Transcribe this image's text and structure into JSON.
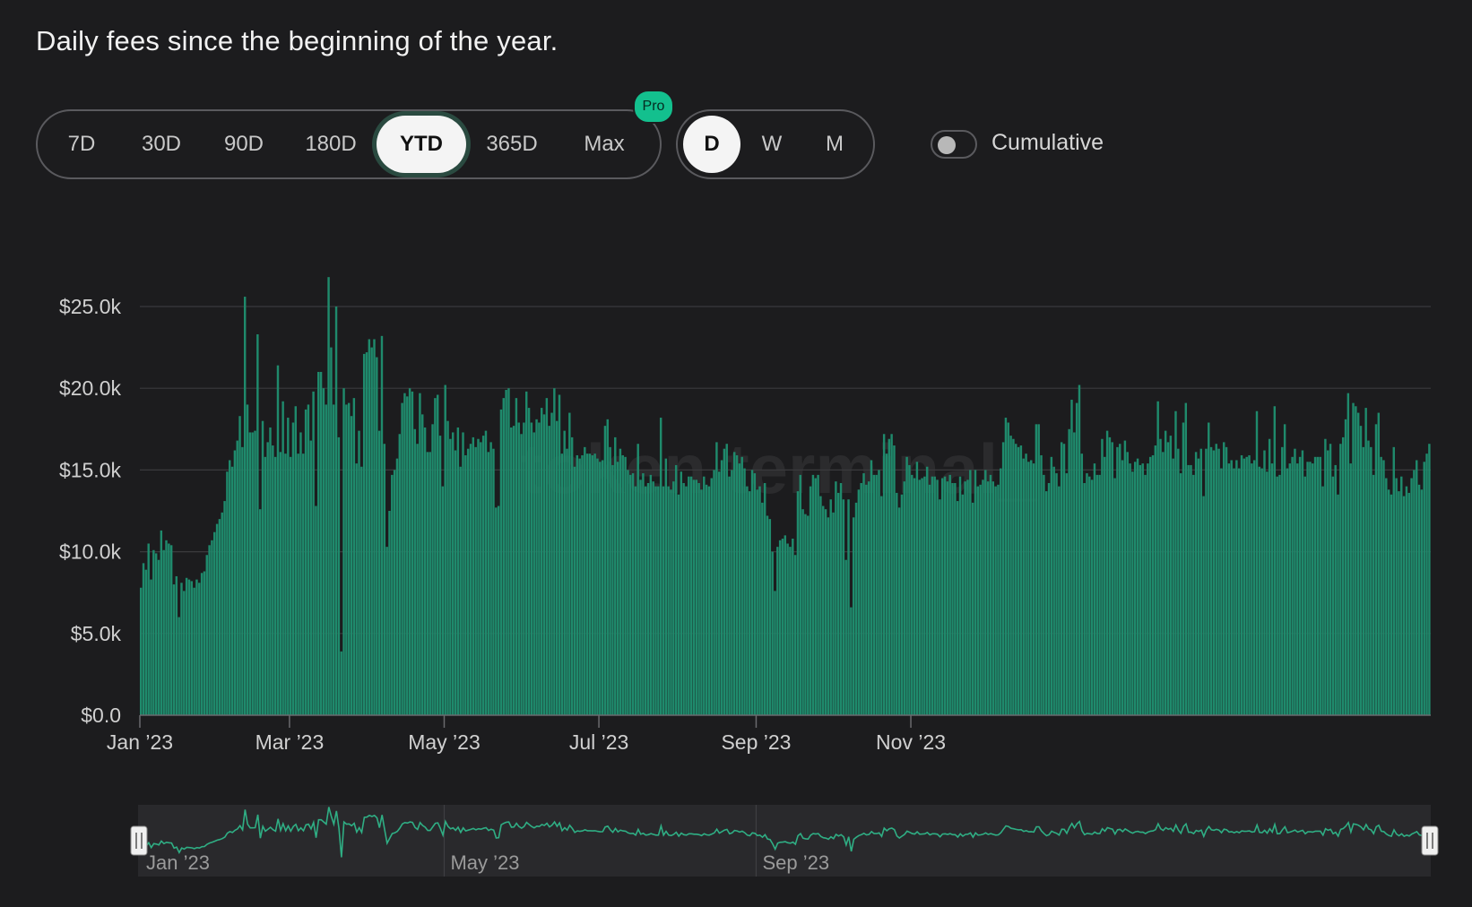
{
  "title": "Daily fees since the beginning of the year.",
  "range_tabs": [
    {
      "label": "7D",
      "name": "range-tab-7d",
      "active": false
    },
    {
      "label": "30D",
      "name": "range-tab-30d",
      "active": false
    },
    {
      "label": "90D",
      "name": "range-tab-90d",
      "active": false
    },
    {
      "label": "180D",
      "name": "range-tab-180d",
      "active": false
    },
    {
      "label": "YTD",
      "name": "range-tab-ytd",
      "active": true
    },
    {
      "label": "365D",
      "name": "range-tab-365d",
      "active": false
    },
    {
      "label": "Max",
      "name": "range-tab-max",
      "active": false
    }
  ],
  "pro_badge": "Pro",
  "granularity_tabs": [
    {
      "label": "D",
      "name": "granularity-tab-day",
      "active": true
    },
    {
      "label": "W",
      "name": "granularity-tab-week",
      "active": false
    },
    {
      "label": "M",
      "name": "granularity-tab-month",
      "active": false
    }
  ],
  "cumulative": {
    "label": "Cumulative",
    "on": false
  },
  "watermark": "token terminal_",
  "colors": {
    "bar": "#1f8a6c",
    "line": "#2fae84",
    "accent": "#13c08e",
    "background": "#1c1c1e"
  },
  "chart_data": {
    "type": "bar",
    "title": "Daily fees since the beginning of the year.",
    "xlabel": "",
    "ylabel": "",
    "ylim": [
      0,
      25000
    ],
    "yticks": [
      "$0.0",
      "$5.0k",
      "$10.0k",
      "$15.0k",
      "$20.0k",
      "$25.0k"
    ],
    "ytick_values": [
      0,
      5000,
      10000,
      15000,
      20000,
      25000
    ],
    "xticks": [
      "Jan ’23",
      "Mar ’23",
      "May ’23",
      "Jul ’23",
      "Sep ’23",
      "Nov ’23"
    ],
    "xtick_days": [
      0,
      59,
      120,
      181,
      243,
      304
    ],
    "grid": true,
    "navigator_labels": [
      "Jan ’23",
      "May ’23",
      "Sep ’23"
    ],
    "navigator_label_days": [
      0,
      120,
      243
    ],
    "x_start": "2023-01-01",
    "series": [
      {
        "values": [
          7800,
          9300,
          8900,
          10500,
          8300,
          10100,
          9900,
          9500,
          11300,
          10100,
          10700,
          10500,
          10400,
          8000,
          8500,
          6000,
          8100,
          7600,
          8400,
          8300,
          8200,
          7800,
          8300,
          8100,
          8700,
          8800,
          9800,
          10400,
          10700,
          11200,
          11700,
          12000,
          12400,
          13100,
          14900,
          15600,
          15200,
          16200,
          16800,
          18300,
          16400,
          25600,
          19000,
          17300,
          17300,
          17400,
          23300,
          12600,
          18000,
          15800,
          16700,
          17600,
          16500,
          15800,
          21400,
          16100,
          19200,
          16000,
          18200,
          15800,
          17900,
          18900,
          16000,
          17300,
          16000,
          18700,
          19000,
          16800,
          19800,
          12800,
          21000,
          21000,
          20000,
          19000,
          26800,
          22500,
          19000,
          25000,
          17000,
          3900,
          20000,
          19000,
          19100,
          18300,
          19400,
          15400,
          17400,
          15200,
          22100,
          22200,
          23000,
          22500,
          23000,
          21900,
          17400,
          23200,
          16600,
          10300,
          12500,
          14700,
          15000,
          15700,
          17200,
          19100,
          19700,
          19500,
          20000,
          19800,
          17500,
          16600,
          19700,
          18400,
          17600,
          16100,
          16100,
          17800,
          19400,
          19600,
          17100,
          14000,
          20200,
          18000,
          16900,
          17300,
          16200,
          17600,
          15200,
          17300,
          15900,
          16300,
          16600,
          17000,
          16400,
          16900,
          16700,
          17100,
          17400,
          16100,
          16700,
          16300,
          12700,
          12800,
          18700,
          19400,
          19900,
          20000,
          17600,
          17700,
          19400,
          17900,
          17200,
          17900,
          19800,
          18800,
          17900,
          17300,
          18100,
          17900,
          18800,
          18400,
          19400,
          17700,
          18500,
          20000,
          18000,
          19600,
          16000,
          17400,
          16300,
          18500,
          17000,
          15200,
          15900,
          15700,
          15900,
          16400,
          16000,
          16000,
          15900,
          16000,
          15700,
          15500,
          15600,
          17700,
          18100,
          16400,
          15300,
          17000,
          15500,
          16300,
          15900,
          15800,
          15000,
          14700,
          14800,
          14000,
          16600,
          14400,
          14800,
          14000,
          14200,
          14700,
          14300,
          14000,
          14000,
          18200,
          14000,
          15700,
          14000,
          13800,
          14300,
          15300,
          13500,
          14900,
          14200,
          14000,
          14600,
          14600,
          14400,
          14400,
          14200,
          13800,
          14600,
          14100,
          14000,
          14500,
          15000,
          16700,
          14900,
          15600,
          16300,
          16600,
          14600,
          15000,
          16100,
          15900,
          15400,
          15800,
          15100,
          14000,
          13700,
          15000,
          14800,
          13800,
          14000,
          13000,
          14200,
          12200,
          12000,
          10000,
          7600,
          10300,
          10700,
          10800,
          11000,
          10500,
          10300,
          10800,
          9800,
          13700,
          14700,
          12600,
          12300,
          12200,
          14000,
          14700,
          14500,
          14700,
          13400,
          12800,
          12600,
          12100,
          13200,
          12400,
          14300,
          13600,
          14200,
          13200,
          9500,
          13200,
          6600,
          12100,
          13000,
          13800,
          14200,
          14800,
          14100,
          14300,
          15600,
          14700,
          14700,
          15000,
          13400,
          17200,
          16000,
          16900,
          17200,
          16500,
          13600,
          12700,
          13500,
          14300,
          15800,
          15300,
          14700,
          14500,
          15500,
          14400,
          14500,
          14600,
          15200,
          14100,
          14600,
          14600,
          14400,
          13200,
          14500,
          14600,
          14300,
          14700,
          14200,
          14200,
          13100,
          14600,
          13500,
          14300,
          14400,
          15000,
          13000,
          15000,
          14000,
          14100,
          14400,
          15000,
          14300,
          14700,
          14300,
          14000,
          14100,
          15100,
          16700,
          18200,
          17900,
          17100,
          16900,
          16600,
          16400,
          16500,
          15700,
          16000,
          15500,
          15600,
          15400,
          17800,
          17800,
          15900,
          14700,
          13700,
          14200,
          15800,
          15200,
          14800,
          14000,
          16700,
          16600,
          14800,
          17500,
          19300,
          17300,
          19100,
          20200,
          16000,
          14200,
          14800,
          14600,
          14400,
          15400,
          14700,
          14700,
          16900,
          15800,
          17400,
          17000,
          16700,
          14500,
          16400,
          16600,
          15600,
          16800,
          16100,
          15400,
          14900,
          15500,
          15700,
          15300,
          15400,
          14700,
          15400,
          15800,
          15900,
          16500,
          19200,
          16900,
          16100,
          17400,
          16700,
          17100,
          15700,
          18600,
          16300,
          14800,
          17900,
          19100,
          15300,
          15300,
          14700,
          16100,
          15700,
          16300,
          13400,
          16300,
          17900,
          16400,
          16200,
          16600,
          16300,
          15100,
          16700,
          16400,
          15400,
          15600,
          15100,
          15600,
          15100,
          15900,
          15700,
          15800,
          15900,
          15400,
          15600,
          18600,
          15200,
          15100,
          16200,
          14900,
          16900,
          15400,
          18900,
          14600,
          14700,
          16400,
          17800,
          15100,
          15400,
          15800,
          16300,
          15400,
          15800,
          16200,
          14600,
          15500,
          15500,
          15400,
          15800,
          15800,
          15800,
          14000,
          16900,
          16200,
          16600,
          14600,
          15300,
          13500,
          16600,
          17000,
          18100,
          19700,
          15400,
          19100,
          18900,
          18500,
          17700,
          16400,
          18800,
          16800,
          16400,
          14700,
          17800,
          18500,
          15800,
          15600,
          14500,
          13800,
          13500,
          16400,
          14500,
          13700,
          14600,
          13400,
          14000,
          13600,
          14500,
          15000,
          15600,
          14100,
          13800,
          15500,
          16000,
          16600
        ],
        "values_note": ""
      }
    ]
  }
}
